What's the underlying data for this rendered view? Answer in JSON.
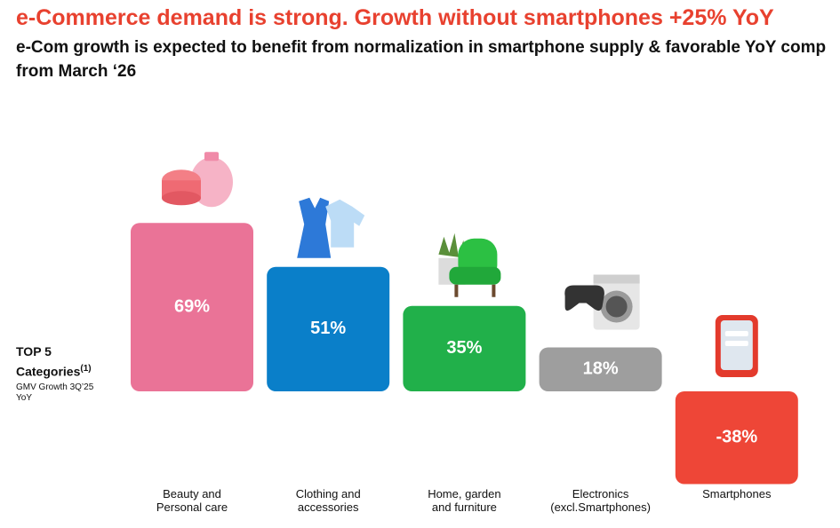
{
  "chart_data": {
    "type": "bar",
    "title": "e-Commerce demand is strong. Growth without smartphones +25% YoY",
    "subtitle": "e-Com growth is expected to benefit from normalization in smartphone supply & favorable YoY comp from March ‘26",
    "annotation": {
      "heading": "TOP 5",
      "subheading": "Categories",
      "footnote_ref": "(1)",
      "caption": "GMV Growth 3Q’25 YoY"
    },
    "categories": [
      "Beauty and\nPersonal care",
      "Clothing and\naccessories",
      "Home, garden\nand furniture",
      "Electronics\n(excl.Smartphones)",
      "Smartphones"
    ],
    "values": [
      69,
      51,
      35,
      18,
      -38
    ],
    "value_labels": [
      "69%",
      "51%",
      "35%",
      "18%",
      "-38%"
    ],
    "colors": [
      "#ea7397",
      "#0a7fc9",
      "#21b04a",
      "#9e9e9e",
      "#ee4637"
    ]
  }
}
